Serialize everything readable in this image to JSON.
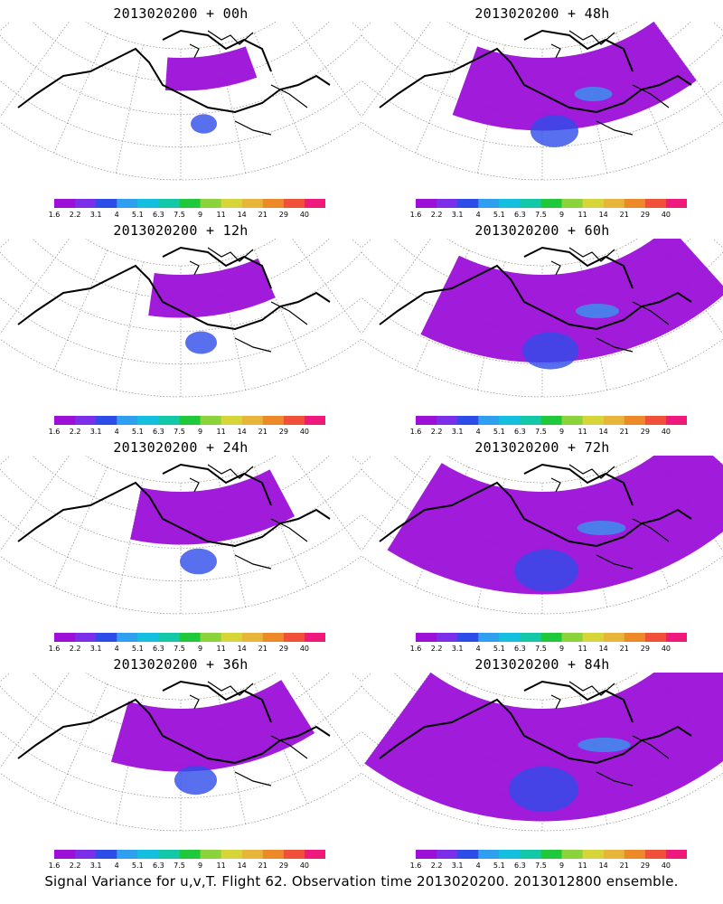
{
  "panels": [
    {
      "title": "2013020200 + 00h",
      "spread": 0.15
    },
    {
      "title": "2013020200 + 48h",
      "spread": 0.55
    },
    {
      "title": "2013020200 + 12h",
      "spread": 0.25
    },
    {
      "title": "2013020200 + 60h",
      "spread": 0.7
    },
    {
      "title": "2013020200 + 24h",
      "spread": 0.35
    },
    {
      "title": "2013020200 + 72h",
      "spread": 0.85
    },
    {
      "title": "2013020200 + 36h",
      "spread": 0.45
    },
    {
      "title": "2013020200 + 84h",
      "spread": 0.95
    }
  ],
  "colorbar": {
    "labels": [
      "1.6",
      "2.2",
      "3.1",
      "4",
      "5.1",
      "6.3",
      "7.5",
      "9",
      "11",
      "14",
      "21",
      "29",
      "40"
    ],
    "colors": [
      "#9c10d8",
      "#7a2fe8",
      "#2e4ce8",
      "#2f9fef",
      "#14bfe0",
      "#13c8a8",
      "#22c83c",
      "#8cd23a",
      "#d6d63a",
      "#e8b43a",
      "#ec8a2a",
      "#f0503a",
      "#ef1a7c"
    ]
  },
  "caption": "Signal Variance for u,v,T. Flight 62. Observation time 2013020200. 2013012800 ensemble."
}
